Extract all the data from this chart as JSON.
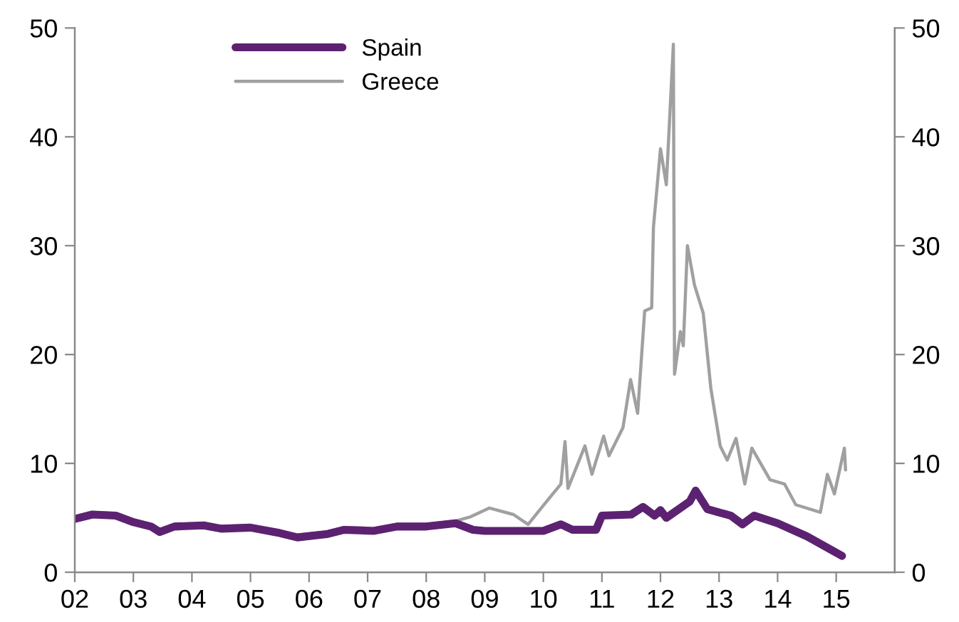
{
  "chart_data": {
    "type": "line",
    "series": [
      {
        "name": "Spain",
        "color": "#5c2271",
        "x": [
          2002.0,
          2002.3,
          2002.7,
          2003.0,
          2003.3,
          2003.45,
          2003.7,
          2004.2,
          2004.5,
          2005.0,
          2005.5,
          2005.8,
          2006.3,
          2006.6,
          2007.1,
          2007.5,
          2008.0,
          2008.5,
          2008.8,
          2009.0,
          2009.5,
          2010.0,
          2010.3,
          2010.5,
          2010.9,
          2011.0,
          2011.5,
          2011.7,
          2011.9,
          2012.0,
          2012.1,
          2012.5,
          2012.6,
          2012.8,
          2013.2,
          2013.4,
          2013.6,
          2014.0,
          2014.5,
          2014.8,
          2015.1
        ],
        "values": [
          4.9,
          5.3,
          5.2,
          4.6,
          4.2,
          3.7,
          4.2,
          4.3,
          4.0,
          4.1,
          3.6,
          3.2,
          3.5,
          3.9,
          3.8,
          4.2,
          4.2,
          4.5,
          3.9,
          3.8,
          3.8,
          3.8,
          4.4,
          3.9,
          3.9,
          5.2,
          5.3,
          6.0,
          5.2,
          5.7,
          5.0,
          6.5,
          7.5,
          5.8,
          5.2,
          4.4,
          5.2,
          4.5,
          3.3,
          2.4,
          1.5
        ]
      },
      {
        "name": "Greece",
        "color": "#a0a0a0",
        "x": [
          2002.0,
          2002.3,
          2002.7,
          2003.0,
          2003.3,
          2003.45,
          2003.7,
          2004.2,
          2004.5,
          2005.0,
          2005.5,
          2005.8,
          2006.3,
          2006.6,
          2007.1,
          2007.5,
          2008.0,
          2008.5,
          2008.76,
          2009.08,
          2009.49,
          2009.74,
          2010.1,
          2010.3,
          2010.37,
          2010.42,
          2010.71,
          2010.83,
          2011.03,
          2011.12,
          2011.36,
          2011.49,
          2011.61,
          2011.73,
          2011.85,
          2011.88,
          2012.0,
          2012.1,
          2012.22,
          2012.24,
          2012.34,
          2012.39,
          2012.46,
          2012.58,
          2012.73,
          2012.86,
          2013.02,
          2013.14,
          2013.29,
          2013.44,
          2013.56,
          2013.87,
          2014.12,
          2014.31,
          2014.73,
          2014.85,
          2014.97,
          2015.14,
          2015.16
        ],
        "values": [
          5.1,
          5.5,
          5.4,
          4.8,
          4.4,
          3.9,
          4.4,
          4.5,
          4.2,
          4.3,
          3.8,
          3.4,
          3.7,
          4.1,
          4.0,
          4.4,
          4.4,
          4.7,
          5.1,
          5.9,
          5.3,
          4.4,
          6.8,
          8.1,
          12.0,
          7.7,
          11.6,
          9.0,
          12.5,
          10.7,
          13.3,
          17.7,
          14.6,
          24.0,
          24.3,
          31.7,
          38.9,
          35.6,
          48.5,
          18.2,
          22.1,
          20.8,
          30.0,
          26.4,
          23.8,
          16.9,
          11.6,
          10.3,
          12.3,
          8.1,
          11.4,
          8.5,
          8.1,
          6.2,
          5.5,
          9.0,
          7.2,
          11.4,
          9.4
        ]
      }
    ],
    "xlim": [
      2002,
      2016
    ],
    "xticks": [
      {
        "value": 2002,
        "label": "02"
      },
      {
        "value": 2003,
        "label": "03"
      },
      {
        "value": 2004,
        "label": "04"
      },
      {
        "value": 2005,
        "label": "05"
      },
      {
        "value": 2006,
        "label": "06"
      },
      {
        "value": 2007,
        "label": "07"
      },
      {
        "value": 2008,
        "label": "08"
      },
      {
        "value": 2009,
        "label": "09"
      },
      {
        "value": 2010,
        "label": "10"
      },
      {
        "value": 2011,
        "label": "11"
      },
      {
        "value": 2012,
        "label": "12"
      },
      {
        "value": 2013,
        "label": "13"
      },
      {
        "value": 2014,
        "label": "14"
      },
      {
        "value": 2015,
        "label": "15"
      }
    ],
    "ylim": [
      0,
      50
    ],
    "yticks": [
      0,
      10,
      20,
      30,
      40,
      50
    ],
    "y2lim": [
      0,
      50
    ],
    "y2ticks": [
      0,
      10,
      20,
      30,
      40,
      50
    ],
    "legend": "top left",
    "grid": false,
    "marker": "none",
    "line_style": "solid"
  }
}
